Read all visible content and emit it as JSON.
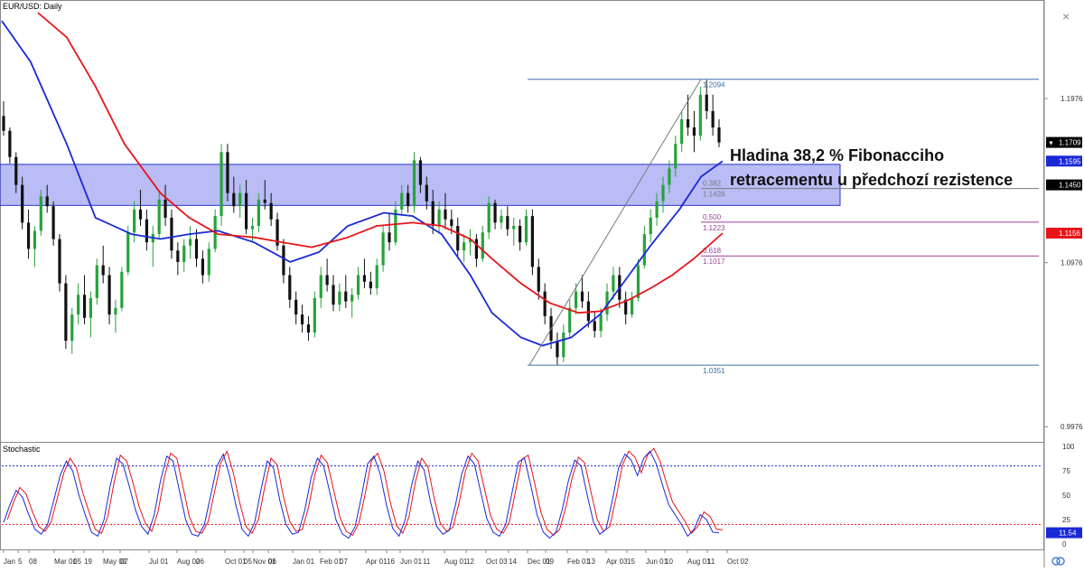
{
  "chart_data": [
    {
      "type": "candlestick",
      "title": "EUR/USD: Daily",
      "x_tick_labels": [
        "Jan",
        "5",
        "08",
        "Mar 01",
        "05",
        "19",
        "May 01",
        "07",
        "Jul 01",
        "Aug 02",
        "06",
        "Oct 01",
        "05",
        "Nov 01",
        "06",
        "Jan 01",
        "Feb 01",
        "07",
        "Apr 01",
        "16",
        "Jun 01",
        "11",
        "Aug 01",
        "12",
        "Oct 03",
        "14",
        "Dec 01",
        "09",
        "Feb 01",
        "13",
        "Apr 03",
        "15",
        "Jun 01",
        "10",
        "Aug 01",
        "11",
        "Oct 02"
      ],
      "y_tick_labels": [
        "1.1976",
        "1.0976",
        "0.9976"
      ],
      "ylim": [
        0.99,
        1.25
      ],
      "current_price": "1.1709",
      "price_badges": [
        {
          "label": "1.1709",
          "color": "#000000"
        },
        {
          "label": "1.1595",
          "color": "#1a29d6"
        },
        {
          "label": "1.1450",
          "color": "#000000"
        },
        {
          "label": "1.1156",
          "color": "#e8141a"
        }
      ],
      "series": [
        {
          "name": "",
          "color": "#1a29d6",
          "kind": "moving-average",
          "x": [
            0,
            0.04,
            0.09,
            0.13,
            0.18,
            0.22,
            0.26,
            0.3,
            0.35,
            0.4,
            0.44,
            0.48,
            0.53,
            0.57,
            0.61,
            0.65,
            0.68,
            0.72,
            0.75,
            0.79,
            0.83,
            0.87,
            0.9,
            0.94,
            0.97,
            1.0
          ],
          "y": [
            1.245,
            1.22,
            1.17,
            1.125,
            1.115,
            1.112,
            1.115,
            1.117,
            1.11,
            1.098,
            1.104,
            1.12,
            1.128,
            1.126,
            1.115,
            1.09,
            1.067,
            1.052,
            1.047,
            1.052,
            1.066,
            1.09,
            1.108,
            1.13,
            1.15,
            1.1595
          ]
        },
        {
          "name": "",
          "color": "#e8141a",
          "kind": "moving-average",
          "x": [
            0.05,
            0.09,
            0.13,
            0.17,
            0.22,
            0.26,
            0.3,
            0.35,
            0.39,
            0.43,
            0.48,
            0.52,
            0.57,
            0.61,
            0.65,
            0.68,
            0.72,
            0.76,
            0.8,
            0.83,
            0.87,
            0.9,
            0.93,
            0.96,
            1.0
          ],
          "y": [
            1.25,
            1.235,
            1.205,
            1.17,
            1.14,
            1.125,
            1.115,
            1.113,
            1.11,
            1.107,
            1.113,
            1.12,
            1.122,
            1.12,
            1.112,
            1.1,
            1.085,
            1.073,
            1.067,
            1.068,
            1.075,
            1.082,
            1.09,
            1.1,
            1.1156
          ]
        }
      ],
      "candles_ohlc": [
        [
          1.187,
          1.196,
          1.175,
          1.178
        ],
        [
          1.178,
          1.18,
          1.158,
          1.162
        ],
        [
          1.162,
          1.165,
          1.14,
          1.145
        ],
        [
          1.145,
          1.15,
          1.118,
          1.122
        ],
        [
          1.122,
          1.13,
          1.1,
          1.106
        ],
        [
          1.106,
          1.12,
          1.095,
          1.117
        ],
        [
          1.117,
          1.142,
          1.114,
          1.138
        ],
        [
          1.138,
          1.145,
          1.128,
          1.132
        ],
        [
          1.132,
          1.135,
          1.108,
          1.112
        ],
        [
          1.112,
          1.115,
          1.08,
          1.085
        ],
        [
          1.085,
          1.09,
          1.045,
          1.05
        ],
        [
          1.05,
          1.07,
          1.042,
          1.066
        ],
        [
          1.066,
          1.085,
          1.06,
          1.078
        ],
        [
          1.078,
          1.09,
          1.06,
          1.064
        ],
        [
          1.064,
          1.08,
          1.052,
          1.076
        ],
        [
          1.076,
          1.1,
          1.072,
          1.096
        ],
        [
          1.096,
          1.108,
          1.085,
          1.09
        ],
        [
          1.09,
          1.095,
          1.06,
          1.066
        ],
        [
          1.066,
          1.075,
          1.055,
          1.07
        ],
        [
          1.07,
          1.095,
          1.068,
          1.092
        ],
        [
          1.092,
          1.12,
          1.09,
          1.116
        ],
        [
          1.116,
          1.135,
          1.11,
          1.13
        ],
        [
          1.13,
          1.142,
          1.12,
          1.124
        ],
        [
          1.124,
          1.13,
          1.105,
          1.11
        ],
        [
          1.11,
          1.12,
          1.095,
          1.115
        ],
        [
          1.115,
          1.14,
          1.112,
          1.136
        ],
        [
          1.136,
          1.145,
          1.12,
          1.125
        ],
        [
          1.125,
          1.13,
          1.1,
          1.105
        ],
        [
          1.105,
          1.11,
          1.09,
          1.098
        ],
        [
          1.098,
          1.112,
          1.092,
          1.108
        ],
        [
          1.108,
          1.12,
          1.1,
          1.112
        ],
        [
          1.112,
          1.118,
          1.095,
          1.1
        ],
        [
          1.1,
          1.105,
          1.085,
          1.09
        ],
        [
          1.09,
          1.11,
          1.086,
          1.106
        ],
        [
          1.106,
          1.13,
          1.104,
          1.126
        ],
        [
          1.126,
          1.17,
          1.12,
          1.165
        ],
        [
          1.165,
          1.17,
          1.135,
          1.14
        ],
        [
          1.14,
          1.15,
          1.128,
          1.132
        ],
        [
          1.132,
          1.145,
          1.125,
          1.14
        ],
        [
          1.14,
          1.148,
          1.115,
          1.118
        ],
        [
          1.118,
          1.125,
          1.11,
          1.12
        ],
        [
          1.12,
          1.14,
          1.116,
          1.136
        ],
        [
          1.136,
          1.148,
          1.13,
          1.134
        ],
        [
          1.134,
          1.14,
          1.12,
          1.124
        ],
        [
          1.124,
          1.128,
          1.105,
          1.108
        ],
        [
          1.108,
          1.112,
          1.085,
          1.09
        ],
        [
          1.09,
          1.095,
          1.07,
          1.075
        ],
        [
          1.075,
          1.08,
          1.06,
          1.066
        ],
        [
          1.066,
          1.072,
          1.055,
          1.06
        ],
        [
          1.06,
          1.065,
          1.05,
          1.055
        ],
        [
          1.055,
          1.08,
          1.052,
          1.076
        ],
        [
          1.076,
          1.095,
          1.07,
          1.09
        ],
        [
          1.09,
          1.1,
          1.08,
          1.084
        ],
        [
          1.084,
          1.09,
          1.068,
          1.072
        ],
        [
          1.072,
          1.085,
          1.068,
          1.08
        ],
        [
          1.08,
          1.09,
          1.07,
          1.074
        ],
        [
          1.074,
          1.082,
          1.064,
          1.078
        ],
        [
          1.078,
          1.095,
          1.075,
          1.09
        ],
        [
          1.09,
          1.1,
          1.082,
          1.086
        ],
        [
          1.086,
          1.092,
          1.078,
          1.082
        ],
        [
          1.082,
          1.1,
          1.078,
          1.096
        ],
        [
          1.096,
          1.12,
          1.092,
          1.116
        ],
        [
          1.116,
          1.128,
          1.105,
          1.11
        ],
        [
          1.11,
          1.135,
          1.108,
          1.13
        ],
        [
          1.13,
          1.145,
          1.126,
          1.14
        ],
        [
          1.14,
          1.145,
          1.128,
          1.132
        ],
        [
          1.132,
          1.165,
          1.128,
          1.16
        ],
        [
          1.16,
          1.162,
          1.14,
          1.145
        ],
        [
          1.145,
          1.15,
          1.13,
          1.135
        ],
        [
          1.135,
          1.142,
          1.115,
          1.12
        ],
        [
          1.12,
          1.135,
          1.116,
          1.13
        ],
        [
          1.13,
          1.14,
          1.118,
          1.124
        ],
        [
          1.124,
          1.13,
          1.115,
          1.12
        ],
        [
          1.12,
          1.125,
          1.1,
          1.105
        ],
        [
          1.105,
          1.115,
          1.098,
          1.11
        ],
        [
          1.11,
          1.118,
          1.102,
          1.112
        ],
        [
          1.112,
          1.115,
          1.095,
          1.1
        ],
        [
          1.1,
          1.12,
          1.098,
          1.116
        ],
        [
          1.116,
          1.138,
          1.112,
          1.134
        ],
        [
          1.134,
          1.136,
          1.118,
          1.122
        ],
        [
          1.122,
          1.13,
          1.118,
          1.126
        ],
        [
          1.126,
          1.132,
          1.114,
          1.118
        ],
        [
          1.118,
          1.125,
          1.108,
          1.12
        ],
        [
          1.12,
          1.124,
          1.105,
          1.11
        ],
        [
          1.11,
          1.13,
          1.108,
          1.126
        ],
        [
          1.126,
          1.13,
          1.09,
          1.095
        ],
        [
          1.095,
          1.1,
          1.075,
          1.08
        ],
        [
          1.08,
          1.085,
          1.06,
          1.065
        ],
        [
          1.065,
          1.07,
          1.045,
          1.05
        ],
        [
          1.05,
          1.055,
          1.035,
          1.04
        ],
        [
          1.04,
          1.06,
          1.037,
          1.055
        ],
        [
          1.055,
          1.075,
          1.052,
          1.07
        ],
        [
          1.07,
          1.085,
          1.066,
          1.08
        ],
        [
          1.08,
          1.09,
          1.07,
          1.074
        ],
        [
          1.074,
          1.08,
          1.058,
          1.062
        ],
        [
          1.062,
          1.068,
          1.052,
          1.056
        ],
        [
          1.056,
          1.07,
          1.052,
          1.066
        ],
        [
          1.066,
          1.085,
          1.062,
          1.08
        ],
        [
          1.08,
          1.095,
          1.075,
          1.09
        ],
        [
          1.09,
          1.095,
          1.07,
          1.075
        ],
        [
          1.075,
          1.08,
          1.06,
          1.066
        ],
        [
          1.066,
          1.08,
          1.064,
          1.076
        ],
        [
          1.076,
          1.1,
          1.074,
          1.096
        ],
        [
          1.096,
          1.12,
          1.094,
          1.115
        ],
        [
          1.115,
          1.13,
          1.11,
          1.125
        ],
        [
          1.125,
          1.14,
          1.12,
          1.135
        ],
        [
          1.135,
          1.15,
          1.128,
          1.145
        ],
        [
          1.145,
          1.16,
          1.14,
          1.155
        ],
        [
          1.155,
          1.175,
          1.15,
          1.17
        ],
        [
          1.17,
          1.19,
          1.165,
          1.185
        ],
        [
          1.185,
          1.2,
          1.175,
          1.18
        ],
        [
          1.18,
          1.19,
          1.165,
          1.175
        ],
        [
          1.175,
          1.205,
          1.172,
          1.2
        ],
        [
          1.2,
          1.209,
          1.185,
          1.19
        ],
        [
          1.19,
          1.2,
          1.175,
          1.18
        ],
        [
          1.18,
          1.185,
          1.168,
          1.1709
        ]
      ],
      "fibonacci": {
        "levels": [
          {
            "ratio": "",
            "price": "1.2094",
            "value": 1.2094
          },
          {
            "ratio": "0.382",
            "price": "1.1428",
            "value": 1.1428
          },
          {
            "ratio": "0.500",
            "price": "1.1223",
            "value": 1.1223
          },
          {
            "ratio": "0.618",
            "price": "1.1017",
            "value": 1.1017
          },
          {
            "ratio": "",
            "price": "1.0351",
            "value": 1.0351
          }
        ]
      },
      "resistance_zone": [
        1.138,
        1.152
      ],
      "annotation": [
        "Hladina 38,2 % Fibonacciho",
        "retracementu u předchozí rezistence"
      ]
    },
    {
      "type": "line",
      "title": "Stochastic",
      "ylim": [
        0,
        100
      ],
      "y_tick_labels": [
        "100",
        "75",
        "50",
        "25",
        "0"
      ],
      "levels": [
        80,
        20
      ],
      "current_value": "11.54",
      "series": [
        {
          "name": "",
          "color": "#1a29d6"
        },
        {
          "name": "",
          "color": "#e8141a"
        }
      ],
      "values": [
        22,
        40,
        55,
        48,
        30,
        15,
        10,
        20,
        45,
        70,
        85,
        75,
        50,
        30,
        12,
        8,
        25,
        60,
        88,
        82,
        60,
        35,
        18,
        10,
        30,
        65,
        90,
        85,
        55,
        25,
        10,
        8,
        20,
        50,
        80,
        92,
        70,
        40,
        15,
        8,
        22,
        55,
        85,
        78,
        45,
        20,
        10,
        12,
        35,
        68,
        88,
        80,
        52,
        24,
        10,
        6,
        18,
        48,
        82,
        90,
        72,
        40,
        16,
        8,
        25,
        60,
        85,
        76,
        44,
        18,
        10,
        14,
        40,
        72,
        90,
        82,
        54,
        26,
        12,
        8,
        20,
        52,
        84,
        88,
        60,
        30,
        12,
        6,
        12,
        35,
        65,
        86,
        80,
        50,
        22,
        10,
        15,
        45,
        78,
        92,
        86,
        70,
        88,
        95,
        82,
        60,
        40,
        30,
        20,
        8,
        15,
        30,
        25,
        12,
        11.54
      ]
    }
  ]
}
